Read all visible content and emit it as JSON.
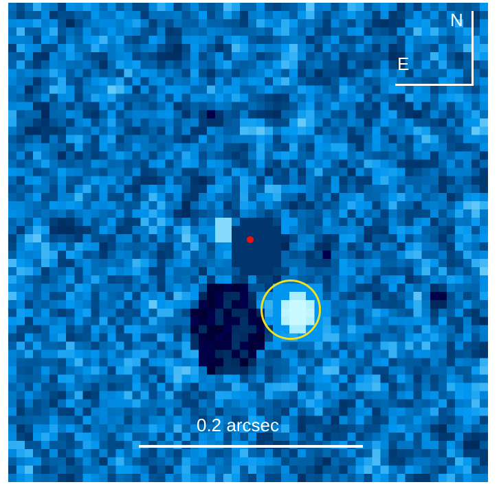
{
  "image": {
    "compass": {
      "north_label": "N",
      "east_label": "E"
    },
    "scale_bar": {
      "label": "0.2 arcsec"
    },
    "colors": {
      "background": "#0a2a86",
      "annotation": "#ffffff",
      "star_marker": "#ee1111",
      "companion_circle": "#f0e020"
    }
  }
}
